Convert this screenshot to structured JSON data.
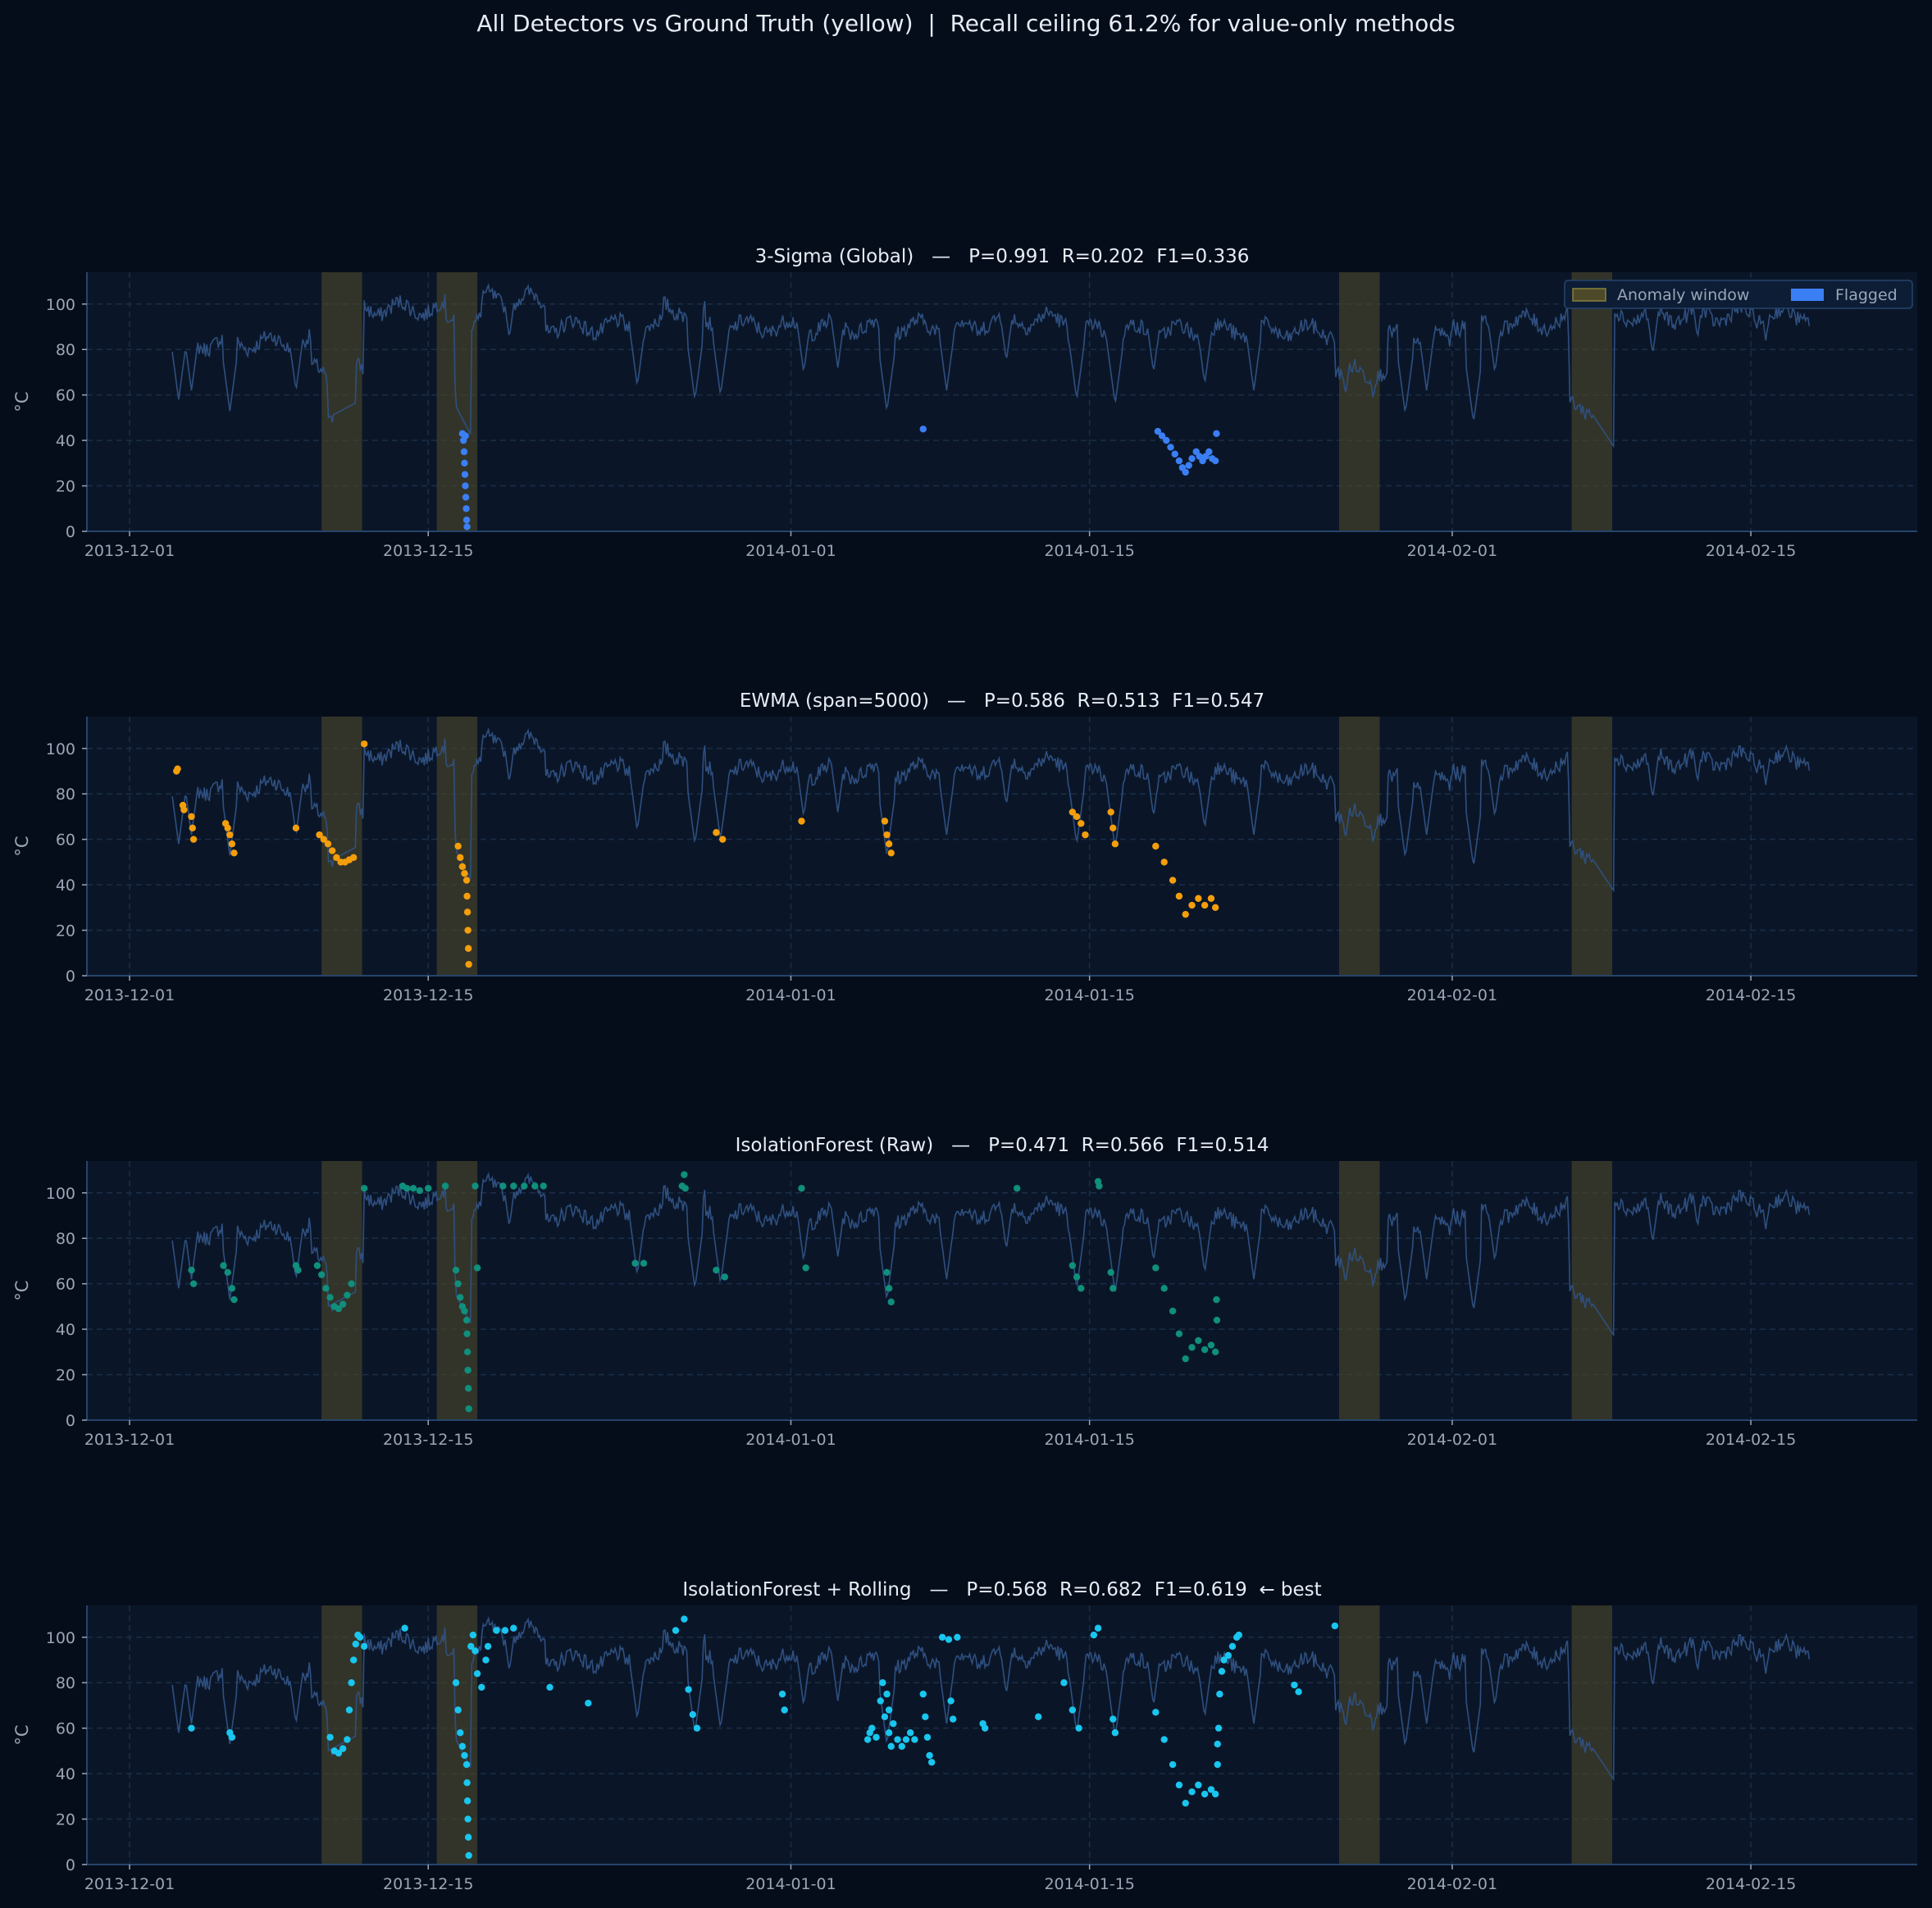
{
  "suptitle": "All Detectors vs Ground Truth (yellow)  |  Recall ceiling 61.2% for value-only methods",
  "colors": {
    "background": "#060d1a",
    "axes_bg": "#0a1628",
    "spine": "#26446c",
    "grid": "#1b2d46",
    "tick_text": "#9aa6b6",
    "title_text": "#e6edf6",
    "signal": "#2f4f7f",
    "anomaly_window": "#4d4a2a"
  },
  "legend": {
    "anomaly_window": "Anomaly window",
    "flagged": "Flagged",
    "placement": "upper-right"
  },
  "chart_data": [
    {
      "type": "line+scatter",
      "title": "3-Sigma (Global)   —   P=0.991  R=0.202  F1=0.336",
      "ylabel": "°C",
      "flag_color": "#3b7ff5",
      "yticks": [
        "0",
        "20",
        "40",
        "60",
        "80",
        "100"
      ],
      "xticks": [
        "2013-12-01",
        "2013-12-15",
        "2014-01-01",
        "2014-01-15",
        "2014-02-01",
        "2014-02-15"
      ],
      "flagged": [
        {
          "x": 15.6,
          "y": 43
        },
        {
          "x": 15.65,
          "y": 40
        },
        {
          "x": 15.68,
          "y": 35
        },
        {
          "x": 15.7,
          "y": 30
        },
        {
          "x": 15.72,
          "y": 25
        },
        {
          "x": 15.74,
          "y": 20
        },
        {
          "x": 15.76,
          "y": 15
        },
        {
          "x": 15.78,
          "y": 10
        },
        {
          "x": 15.8,
          "y": 5
        },
        {
          "x": 15.82,
          "y": 2
        },
        {
          "x": 15.75,
          "y": 42
        },
        {
          "x": 37.2,
          "y": 45
        },
        {
          "x": 48.2,
          "y": 44
        },
        {
          "x": 48.4,
          "y": 42
        },
        {
          "x": 48.6,
          "y": 40
        },
        {
          "x": 48.8,
          "y": 37
        },
        {
          "x": 49.0,
          "y": 34
        },
        {
          "x": 49.2,
          "y": 31
        },
        {
          "x": 49.35,
          "y": 28
        },
        {
          "x": 49.5,
          "y": 26
        },
        {
          "x": 49.65,
          "y": 29
        },
        {
          "x": 49.8,
          "y": 32
        },
        {
          "x": 50.0,
          "y": 35
        },
        {
          "x": 50.15,
          "y": 33
        },
        {
          "x": 50.3,
          "y": 31
        },
        {
          "x": 50.45,
          "y": 33
        },
        {
          "x": 50.6,
          "y": 35
        },
        {
          "x": 50.75,
          "y": 32
        },
        {
          "x": 50.9,
          "y": 31
        },
        {
          "x": 50.95,
          "y": 43
        }
      ]
    },
    {
      "type": "line+scatter",
      "title": "EWMA (span=5000)   —   P=0.586  R=0.513  F1=0.547",
      "ylabel": "°C",
      "flag_color": "#f59e0b",
      "yticks": [
        "0",
        "20",
        "40",
        "60",
        "80",
        "100"
      ],
      "xticks": [
        "2013-12-01",
        "2013-12-15",
        "2014-01-01",
        "2014-01-15",
        "2014-02-01",
        "2014-02-15"
      ],
      "flagged": [
        {
          "x": 2.2,
          "y": 90
        },
        {
          "x": 2.25,
          "y": 91
        },
        {
          "x": 2.5,
          "y": 75
        },
        {
          "x": 2.55,
          "y": 73
        },
        {
          "x": 2.9,
          "y": 70
        },
        {
          "x": 2.95,
          "y": 65
        },
        {
          "x": 3.0,
          "y": 60
        },
        {
          "x": 4.5,
          "y": 67
        },
        {
          "x": 4.6,
          "y": 65
        },
        {
          "x": 4.7,
          "y": 62
        },
        {
          "x": 4.8,
          "y": 58
        },
        {
          "x": 4.9,
          "y": 54
        },
        {
          "x": 7.8,
          "y": 65
        },
        {
          "x": 8.9,
          "y": 62
        },
        {
          "x": 9.1,
          "y": 60
        },
        {
          "x": 9.3,
          "y": 58
        },
        {
          "x": 9.5,
          "y": 55
        },
        {
          "x": 9.7,
          "y": 52
        },
        {
          "x": 9.9,
          "y": 50
        },
        {
          "x": 10.1,
          "y": 50
        },
        {
          "x": 10.3,
          "y": 51
        },
        {
          "x": 10.5,
          "y": 52
        },
        {
          "x": 11.0,
          "y": 102
        },
        {
          "x": 15.4,
          "y": 57
        },
        {
          "x": 15.5,
          "y": 52
        },
        {
          "x": 15.6,
          "y": 48
        },
        {
          "x": 15.7,
          "y": 45
        },
        {
          "x": 15.8,
          "y": 42
        },
        {
          "x": 15.82,
          "y": 35
        },
        {
          "x": 15.84,
          "y": 28
        },
        {
          "x": 15.86,
          "y": 20
        },
        {
          "x": 15.88,
          "y": 12
        },
        {
          "x": 15.9,
          "y": 5
        },
        {
          "x": 27.5,
          "y": 63
        },
        {
          "x": 27.8,
          "y": 60
        },
        {
          "x": 31.5,
          "y": 68
        },
        {
          "x": 35.4,
          "y": 68
        },
        {
          "x": 35.5,
          "y": 62
        },
        {
          "x": 35.6,
          "y": 58
        },
        {
          "x": 35.7,
          "y": 54
        },
        {
          "x": 44.2,
          "y": 72
        },
        {
          "x": 44.4,
          "y": 70
        },
        {
          "x": 44.6,
          "y": 67
        },
        {
          "x": 44.8,
          "y": 62
        },
        {
          "x": 46.0,
          "y": 72
        },
        {
          "x": 46.1,
          "y": 65
        },
        {
          "x": 46.2,
          "y": 58
        },
        {
          "x": 48.1,
          "y": 57
        },
        {
          "x": 48.5,
          "y": 50
        },
        {
          "x": 48.9,
          "y": 42
        },
        {
          "x": 49.2,
          "y": 35
        },
        {
          "x": 49.5,
          "y": 27
        },
        {
          "x": 49.8,
          "y": 31
        },
        {
          "x": 50.1,
          "y": 34
        },
        {
          "x": 50.4,
          "y": 31
        },
        {
          "x": 50.7,
          "y": 34
        },
        {
          "x": 50.9,
          "y": 30
        }
      ]
    },
    {
      "type": "line+scatter",
      "title": "IsolationForest (Raw)   —   P=0.471  R=0.566  F1=0.514",
      "ylabel": "°C",
      "flag_color": "#0f8f7c",
      "yticks": [
        "0",
        "20",
        "40",
        "60",
        "80",
        "100"
      ],
      "xticks": [
        "2013-12-01",
        "2013-12-15",
        "2014-01-01",
        "2014-01-15",
        "2014-02-01",
        "2014-02-15"
      ],
      "flagged": [
        {
          "x": 2.9,
          "y": 66
        },
        {
          "x": 3.0,
          "y": 60
        },
        {
          "x": 4.4,
          "y": 68
        },
        {
          "x": 4.6,
          "y": 65
        },
        {
          "x": 4.8,
          "y": 58
        },
        {
          "x": 4.9,
          "y": 53
        },
        {
          "x": 7.8,
          "y": 68
        },
        {
          "x": 7.9,
          "y": 66
        },
        {
          "x": 8.8,
          "y": 68
        },
        {
          "x": 9.0,
          "y": 64
        },
        {
          "x": 9.2,
          "y": 58
        },
        {
          "x": 9.4,
          "y": 54
        },
        {
          "x": 9.6,
          "y": 50
        },
        {
          "x": 9.8,
          "y": 49
        },
        {
          "x": 10.0,
          "y": 51
        },
        {
          "x": 10.2,
          "y": 55
        },
        {
          "x": 10.4,
          "y": 60
        },
        {
          "x": 11.0,
          "y": 102
        },
        {
          "x": 12.8,
          "y": 103
        },
        {
          "x": 13.0,
          "y": 102
        },
        {
          "x": 13.3,
          "y": 102
        },
        {
          "x": 13.6,
          "y": 101
        },
        {
          "x": 14.0,
          "y": 102
        },
        {
          "x": 14.8,
          "y": 103
        },
        {
          "x": 15.3,
          "y": 66
        },
        {
          "x": 15.4,
          "y": 60
        },
        {
          "x": 15.5,
          "y": 54
        },
        {
          "x": 15.6,
          "y": 50
        },
        {
          "x": 15.7,
          "y": 48
        },
        {
          "x": 15.8,
          "y": 44
        },
        {
          "x": 15.82,
          "y": 38
        },
        {
          "x": 15.84,
          "y": 30
        },
        {
          "x": 15.86,
          "y": 22
        },
        {
          "x": 15.88,
          "y": 14
        },
        {
          "x": 15.9,
          "y": 5
        },
        {
          "x": 16.2,
          "y": 103
        },
        {
          "x": 16.3,
          "y": 67
        },
        {
          "x": 17.5,
          "y": 103
        },
        {
          "x": 18.0,
          "y": 103
        },
        {
          "x": 18.5,
          "y": 103
        },
        {
          "x": 19.0,
          "y": 103
        },
        {
          "x": 19.4,
          "y": 103
        },
        {
          "x": 23.7,
          "y": 69
        },
        {
          "x": 24.1,
          "y": 69
        },
        {
          "x": 26.0,
          "y": 108
        },
        {
          "x": 25.9,
          "y": 103
        },
        {
          "x": 26.05,
          "y": 102
        },
        {
          "x": 27.5,
          "y": 66
        },
        {
          "x": 27.9,
          "y": 63
        },
        {
          "x": 31.5,
          "y": 102
        },
        {
          "x": 31.7,
          "y": 67
        },
        {
          "x": 35.5,
          "y": 65
        },
        {
          "x": 35.6,
          "y": 58
        },
        {
          "x": 35.7,
          "y": 52
        },
        {
          "x": 41.6,
          "y": 102
        },
        {
          "x": 44.2,
          "y": 68
        },
        {
          "x": 44.4,
          "y": 63
        },
        {
          "x": 44.6,
          "y": 58
        },
        {
          "x": 45.4,
          "y": 105
        },
        {
          "x": 45.45,
          "y": 103
        },
        {
          "x": 46.0,
          "y": 65
        },
        {
          "x": 46.1,
          "y": 58
        },
        {
          "x": 48.1,
          "y": 67
        },
        {
          "x": 48.5,
          "y": 58
        },
        {
          "x": 48.9,
          "y": 48
        },
        {
          "x": 49.2,
          "y": 38
        },
        {
          "x": 49.5,
          "y": 27
        },
        {
          "x": 49.8,
          "y": 32
        },
        {
          "x": 50.1,
          "y": 35
        },
        {
          "x": 50.4,
          "y": 31
        },
        {
          "x": 50.7,
          "y": 33
        },
        {
          "x": 50.9,
          "y": 30
        },
        {
          "x": 50.95,
          "y": 53
        },
        {
          "x": 50.97,
          "y": 44
        }
      ]
    },
    {
      "type": "line+scatter",
      "title": "IsolationForest + Rolling   —   P=0.568  R=0.682  F1=0.619  ← best",
      "ylabel": "°C",
      "flag_color": "#19c6ef",
      "yticks": [
        "0",
        "20",
        "40",
        "60",
        "80",
        "100"
      ],
      "xticks": [
        "2013-12-01",
        "2013-12-15",
        "2014-01-01",
        "2014-01-15",
        "2014-02-01",
        "2014-02-15"
      ],
      "flagged": [
        {
          "x": 2.9,
          "y": 60
        },
        {
          "x": 4.7,
          "y": 58
        },
        {
          "x": 4.8,
          "y": 56
        },
        {
          "x": 9.4,
          "y": 56
        },
        {
          "x": 9.6,
          "y": 50
        },
        {
          "x": 9.8,
          "y": 49
        },
        {
          "x": 10.0,
          "y": 51
        },
        {
          "x": 10.2,
          "y": 55
        },
        {
          "x": 10.3,
          "y": 68
        },
        {
          "x": 10.4,
          "y": 80
        },
        {
          "x": 10.5,
          "y": 90
        },
        {
          "x": 10.6,
          "y": 97
        },
        {
          "x": 10.7,
          "y": 101
        },
        {
          "x": 10.8,
          "y": 100
        },
        {
          "x": 11.0,
          "y": 96
        },
        {
          "x": 12.9,
          "y": 104
        },
        {
          "x": 15.3,
          "y": 80
        },
        {
          "x": 15.4,
          "y": 68
        },
        {
          "x": 15.5,
          "y": 58
        },
        {
          "x": 15.6,
          "y": 52
        },
        {
          "x": 15.7,
          "y": 48
        },
        {
          "x": 15.8,
          "y": 44
        },
        {
          "x": 15.82,
          "y": 36
        },
        {
          "x": 15.84,
          "y": 28
        },
        {
          "x": 15.86,
          "y": 20
        },
        {
          "x": 15.88,
          "y": 12
        },
        {
          "x": 15.9,
          "y": 4
        },
        {
          "x": 16.0,
          "y": 96
        },
        {
          "x": 16.1,
          "y": 101
        },
        {
          "x": 16.2,
          "y": 94
        },
        {
          "x": 16.3,
          "y": 84
        },
        {
          "x": 16.5,
          "y": 78
        },
        {
          "x": 16.7,
          "y": 90
        },
        {
          "x": 16.8,
          "y": 96
        },
        {
          "x": 17.2,
          "y": 103
        },
        {
          "x": 17.6,
          "y": 103
        },
        {
          "x": 18.0,
          "y": 104
        },
        {
          "x": 19.7,
          "y": 78
        },
        {
          "x": 21.5,
          "y": 71
        },
        {
          "x": 25.6,
          "y": 103
        },
        {
          "x": 26.0,
          "y": 108
        },
        {
          "x": 26.2,
          "y": 77
        },
        {
          "x": 26.4,
          "y": 66
        },
        {
          "x": 26.6,
          "y": 60
        },
        {
          "x": 30.6,
          "y": 75
        },
        {
          "x": 30.7,
          "y": 68
        },
        {
          "x": 35.4,
          "y": 65
        },
        {
          "x": 35.6,
          "y": 58
        },
        {
          "x": 35.7,
          "y": 52
        },
        {
          "x": 43.8,
          "y": 80
        },
        {
          "x": 44.2,
          "y": 68
        },
        {
          "x": 44.5,
          "y": 60
        },
        {
          "x": 45.2,
          "y": 101
        },
        {
          "x": 45.4,
          "y": 104
        },
        {
          "x": 46.1,
          "y": 64
        },
        {
          "x": 46.2,
          "y": 58
        },
        {
          "x": 40.0,
          "y": 62
        },
        {
          "x": 40.1,
          "y": 60
        },
        {
          "x": 42.6,
          "y": 65
        },
        {
          "x": 38.1,
          "y": 100
        },
        {
          "x": 38.4,
          "y": 99
        },
        {
          "x": 38.8,
          "y": 100
        },
        {
          "x": 38.5,
          "y": 72
        },
        {
          "x": 38.6,
          "y": 64
        },
        {
          "x": 37.2,
          "y": 75
        },
        {
          "x": 37.3,
          "y": 65
        },
        {
          "x": 37.4,
          "y": 56
        },
        {
          "x": 37.5,
          "y": 48
        },
        {
          "x": 37.6,
          "y": 45
        },
        {
          "x": 34.7,
          "y": 58
        },
        {
          "x": 34.6,
          "y": 55
        },
        {
          "x": 34.8,
          "y": 60
        },
        {
          "x": 35.0,
          "y": 56
        },
        {
          "x": 35.2,
          "y": 72
        },
        {
          "x": 35.3,
          "y": 80
        },
        {
          "x": 35.5,
          "y": 75
        },
        {
          "x": 35.6,
          "y": 68
        },
        {
          "x": 35.8,
          "y": 62
        },
        {
          "x": 36.0,
          "y": 55
        },
        {
          "x": 36.2,
          "y": 52
        },
        {
          "x": 36.4,
          "y": 55
        },
        {
          "x": 36.6,
          "y": 58
        },
        {
          "x": 36.8,
          "y": 55
        },
        {
          "x": 48.1,
          "y": 67
        },
        {
          "x": 48.5,
          "y": 55
        },
        {
          "x": 48.9,
          "y": 44
        },
        {
          "x": 49.2,
          "y": 35
        },
        {
          "x": 49.5,
          "y": 27
        },
        {
          "x": 49.8,
          "y": 32
        },
        {
          "x": 50.1,
          "y": 35
        },
        {
          "x": 50.4,
          "y": 31
        },
        {
          "x": 50.7,
          "y": 33
        },
        {
          "x": 50.9,
          "y": 31
        },
        {
          "x": 51.0,
          "y": 53
        },
        {
          "x": 51.0,
          "y": 44
        },
        {
          "x": 51.05,
          "y": 60
        },
        {
          "x": 51.1,
          "y": 75
        },
        {
          "x": 51.2,
          "y": 85
        },
        {
          "x": 51.3,
          "y": 90
        },
        {
          "x": 51.5,
          "y": 92
        },
        {
          "x": 51.7,
          "y": 96
        },
        {
          "x": 51.9,
          "y": 100
        },
        {
          "x": 52.0,
          "y": 101
        },
        {
          "x": 54.6,
          "y": 79
        },
        {
          "x": 54.8,
          "y": 76
        },
        {
          "x": 56.5,
          "y": 105
        }
      ]
    }
  ],
  "shared": {
    "x_unit": "days since 2013-12-01",
    "xlim": [
      -2,
      83.8
    ],
    "ylim": [
      0,
      114
    ],
    "anomaly_windows": [
      [
        9.0,
        10.9
      ],
      [
        14.4,
        16.3
      ],
      [
        56.7,
        58.6
      ],
      [
        67.6,
        69.5
      ]
    ],
    "signal_shape_notes": "ambient temperature trace with dips; rendered procedurally"
  }
}
